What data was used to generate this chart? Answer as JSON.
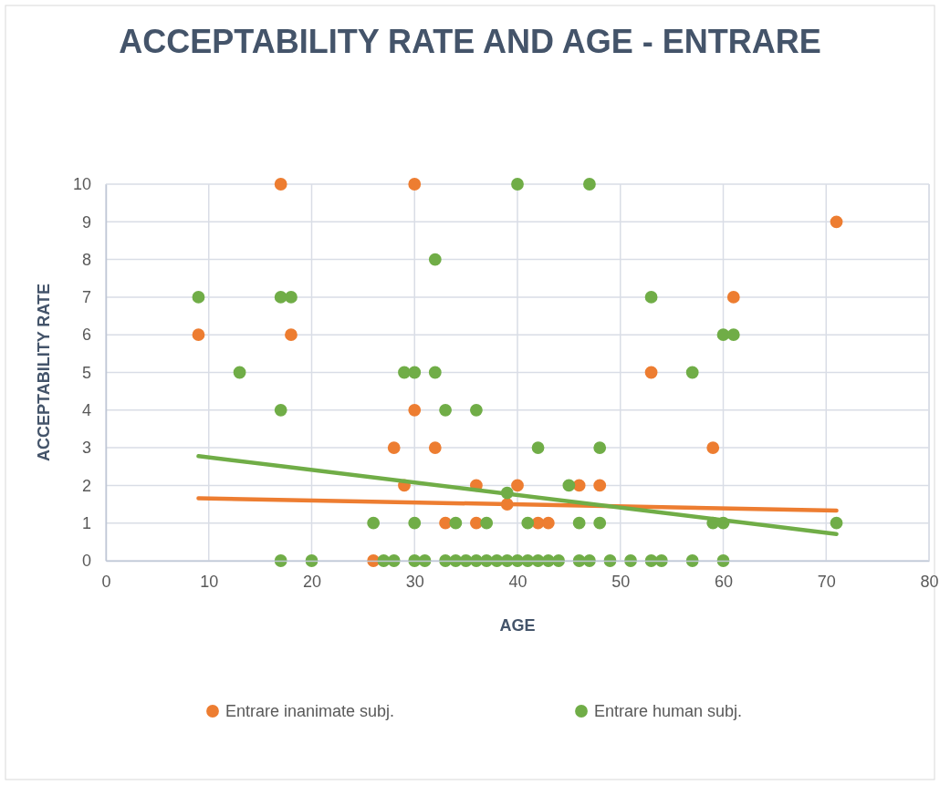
{
  "chart_data": {
    "type": "scatter",
    "title": "ACCEPTABILITY RATE AND AGE - ENTRARE",
    "xlabel": "AGE",
    "ylabel": "ACCEPTABILITY RATE",
    "xlim": [
      0,
      80
    ],
    "xticks": [
      0,
      10,
      20,
      30,
      40,
      50,
      60,
      70,
      80
    ],
    "ylim": [
      0,
      10
    ],
    "yticks": [
      0,
      1,
      2,
      3,
      4,
      5,
      6,
      7,
      8,
      9,
      10
    ],
    "grid": true,
    "legend": "bottom",
    "marker": "circle",
    "series": [
      {
        "name": "Entrare inanimate subj.",
        "color": "#ed7d31",
        "x": [
          17,
          30,
          71,
          9,
          18,
          61,
          53,
          30,
          28,
          32,
          59,
          29,
          36,
          40,
          46,
          48,
          39,
          33,
          36,
          42,
          43,
          26
        ],
        "values": [
          10,
          10,
          9,
          6,
          6,
          7,
          5,
          4,
          3,
          3,
          3,
          2,
          2,
          2,
          2,
          2,
          1.5,
          1,
          1,
          1,
          1,
          0
        ]
      },
      {
        "name": "Entrare human subj.",
        "color": "#70ad47",
        "x": [
          40,
          47,
          32,
          9,
          17,
          18,
          53,
          60,
          61,
          13,
          29,
          30,
          32,
          57,
          17,
          33,
          36,
          42,
          48,
          45,
          39,
          26,
          30,
          34,
          37,
          41,
          46,
          48,
          59,
          60,
          71,
          17,
          20,
          27,
          28,
          30,
          31,
          33,
          34,
          35,
          36,
          37,
          38,
          39,
          40,
          41,
          42,
          43,
          44,
          46,
          47,
          49,
          51,
          53,
          54,
          57,
          60
        ],
        "values": [
          10,
          10,
          8,
          7,
          7,
          7,
          7,
          6,
          6,
          5,
          5,
          5,
          5,
          5,
          4,
          4,
          4,
          3,
          3,
          2,
          1.8,
          1,
          1,
          1,
          1,
          1,
          1,
          1,
          1,
          1,
          1,
          0,
          0,
          0,
          0,
          0,
          0,
          0,
          0,
          0,
          0,
          0,
          0,
          0,
          0,
          0,
          0,
          0,
          0,
          0,
          0,
          0,
          0,
          0,
          0,
          0,
          0
        ]
      },
      {
        "type": "line",
        "marker": "none",
        "color": "#ed7d31",
        "x": [
          9,
          71
        ],
        "values": [
          1.66,
          1.33
        ]
      },
      {
        "type": "line",
        "marker": "none",
        "color": "#70ad47",
        "x": [
          9,
          71
        ],
        "values": [
          2.78,
          0.71
        ]
      }
    ]
  }
}
